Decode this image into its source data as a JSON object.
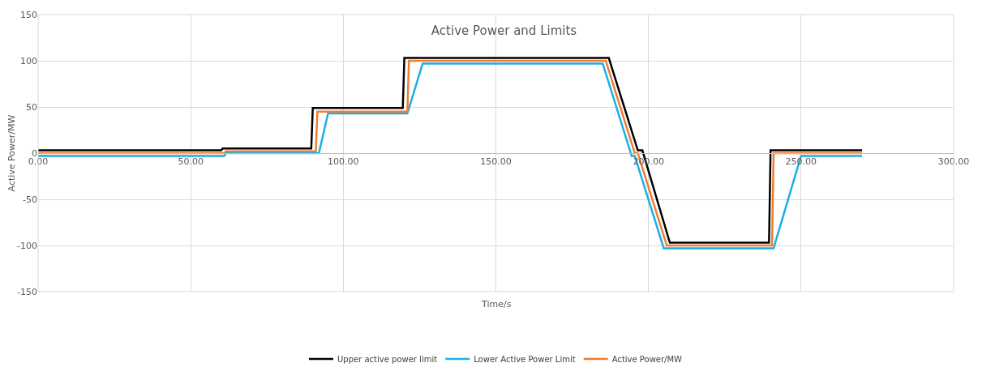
{
  "chart_data": {
    "type": "line",
    "title": "Active Power and Limits",
    "xlabel": "Time/s",
    "ylabel": "Active Power/MW",
    "xlim": [
      0,
      300
    ],
    "xticks": [
      {
        "value": 0,
        "label": "0.00"
      },
      {
        "value": 50,
        "label": "50.00"
      },
      {
        "value": 100,
        "label": "100.00"
      },
      {
        "value": 150,
        "label": "150.00"
      },
      {
        "value": 200,
        "label": "200.00"
      },
      {
        "value": 250,
        "label": "250.00"
      },
      {
        "value": 300,
        "label": "300.00"
      }
    ],
    "ylim": [
      -150,
      150
    ],
    "yticks": [
      -150,
      -100,
      -50,
      0,
      50,
      100,
      150
    ],
    "grid": true,
    "legend": "bottom",
    "marker": "none",
    "line_style": "solid",
    "series": [
      {
        "name": "Upper active power limit",
        "color": "#000000",
        "x": [
          0,
          60,
          60.5,
          89.5,
          90,
          119.5,
          120,
          187,
          196.5,
          198,
          207,
          239.5,
          240,
          270
        ],
        "values": [
          3,
          3,
          5,
          5,
          49,
          49,
          103,
          103,
          3,
          3,
          -97,
          -97,
          3,
          3
        ]
      },
      {
        "name": "Lower Active Power Limit",
        "color": "#1aafe6",
        "x": [
          0,
          61,
          61.5,
          92,
          95,
          121,
          126,
          185,
          194.5,
          195.5,
          205,
          241,
          250,
          270
        ],
        "values": [
          -3,
          -3,
          0,
          0,
          43,
          43,
          97,
          97,
          -3,
          -3,
          -103,
          -103,
          -3,
          -3
        ]
      },
      {
        "name": "Active Power/MW",
        "color": "#ed7d31",
        "x": [
          0,
          61,
          61.5,
          91,
          91.5,
          121,
          121.5,
          186,
          195.5,
          196.5,
          206,
          240.5,
          241,
          270
        ],
        "values": [
          0,
          0,
          2,
          2,
          45,
          45,
          100,
          100,
          0,
          0,
          -100,
          -100,
          0,
          0
        ]
      }
    ]
  }
}
